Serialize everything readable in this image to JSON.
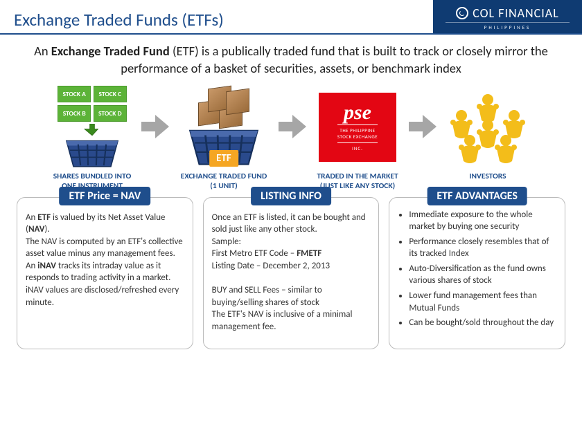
{
  "header": {
    "title": "Exchange Traded Funds (ETFs)",
    "brand_main": "COL FINANCIAL",
    "brand_sub": "PHILIPPINES"
  },
  "colors": {
    "primary": "#1f4e8c",
    "stock_green": "#5cb338",
    "pse_red": "#e30613",
    "etf_orange": "#f5a623",
    "arrow_gray": "#a6a6a6",
    "box_brown": "#b07e48",
    "investor_gold": "#f3bd1a"
  },
  "intro": {
    "prefix": "An ",
    "bold": "Exchange Traded Fund",
    "rest": " (ETF) is a publically traded fund that is built to track or closely mirror the performance of a basket of securities, assets, or benchmark index"
  },
  "flow": {
    "step1": {
      "stocks": [
        "STOCK A",
        "STOCK C",
        "STOCK B",
        "STOCK D"
      ],
      "label_l1": "SHARES BUNDLED INTO",
      "label_l2": "ONE INSTRUMENT"
    },
    "step2": {
      "badge": "ETF",
      "label_l1": "EXCHANGE TRADED FUND",
      "label_l2": "(1 UNIT)"
    },
    "step3": {
      "logo": "pse",
      "text_l1": "THE PHILIPPINE",
      "text_l2": "STOCK EXCHANGE",
      "inc": "INC.",
      "label_l1": "TRADED IN THE MARKET",
      "label_l2": "(JUST LIKE ANY STOCK)"
    },
    "step4": {
      "label": "INVESTORS"
    }
  },
  "boxes": {
    "nav": {
      "tab": "ETF Price = NAV",
      "html": "An <b>ETF</b> is valued by its Net Asset Value (<b>NAV</b>).<br>The NAV is computed by an ETF's collective asset value minus any management fees.<br>An <b>iNAV</b> tracks its intraday value as it responds to trading activity in a market. iNAV values are disclosed/refreshed every minute."
    },
    "listing": {
      "tab": "LISTING INFO",
      "html": "Once an ETF is listed, it can be bought and sold just like any other stock.<br>Sample:<br>First Metro ETF Code – <b>FMETF</b><br>Listing Date – December 2, 2013<br><br>BUY and SELL Fees – similar to buying/selling shares of stock<br>The ETF's NAV is inclusive of a minimal management fee."
    },
    "advantages": {
      "tab": "ETF ADVANTAGES",
      "items": [
        "Immediate exposure to the whole market by buying one security",
        "Performance closely resembles that of its tracked Index",
        "Auto-Diversification as the fund owns various shares of stock",
        "Lower fund management fees than Mutual Funds",
        "Can be bought/sold throughout the day"
      ]
    }
  }
}
